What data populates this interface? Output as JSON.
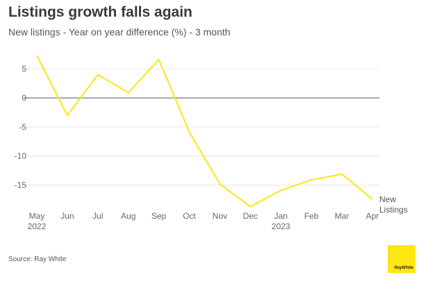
{
  "title": "Listings growth falls again",
  "subtitle": "New listings - Year on year difference (%) - 3 month",
  "source": "Source: Ray White",
  "logo_text": "RayWhite",
  "colors": {
    "line": "#ffe512",
    "grid": "#e6e6e6",
    "zero": "#777777",
    "logo": "#ffe512"
  },
  "chart_data": {
    "type": "line",
    "categories": [
      "May",
      "Jun",
      "Jul",
      "Aug",
      "Sep",
      "Oct",
      "Nov",
      "Dec",
      "Jan",
      "Feb",
      "Mar",
      "Apr"
    ],
    "year_labels": [
      "2022",
      "",
      "",
      "",
      "",
      "",
      "",
      "",
      "2023",
      "",
      "",
      ""
    ],
    "yticks": [
      5,
      0,
      -5,
      -10,
      -15
    ],
    "ylim": [
      -19,
      8
    ],
    "grid": true,
    "series": [
      {
        "name": "New Listings",
        "values": [
          7.3,
          -3.0,
          4.0,
          0.9,
          6.6,
          -5.9,
          -14.8,
          -18.7,
          -15.9,
          -14.1,
          -13.1,
          -17.4
        ]
      }
    ]
  }
}
